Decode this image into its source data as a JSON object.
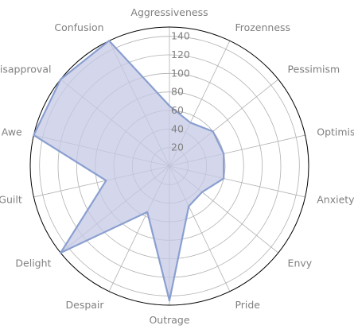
{
  "chart_data": {
    "type": "radar",
    "categories": [
      "Aggressiveness",
      "Frozenness",
      "Pessimism",
      "Optimism",
      "Anxiety",
      "Envy",
      "Pride",
      "Outrage",
      "Despair",
      "Delight",
      "Guilt",
      "Awe",
      "Disapproval",
      "Confusion"
    ],
    "series": [
      {
        "values": [
          65,
          52,
          60,
          60,
          60,
          45,
          48,
          145,
          55,
          150,
          70,
          150,
          150,
          150
        ]
      }
    ],
    "rlim": [
      0,
      150
    ],
    "r_ticks": [
      20,
      40,
      60,
      80,
      100,
      120,
      140
    ],
    "grid": true,
    "colors": {
      "fill": "#c5cae6",
      "line": "#8a9fd0"
    }
  }
}
